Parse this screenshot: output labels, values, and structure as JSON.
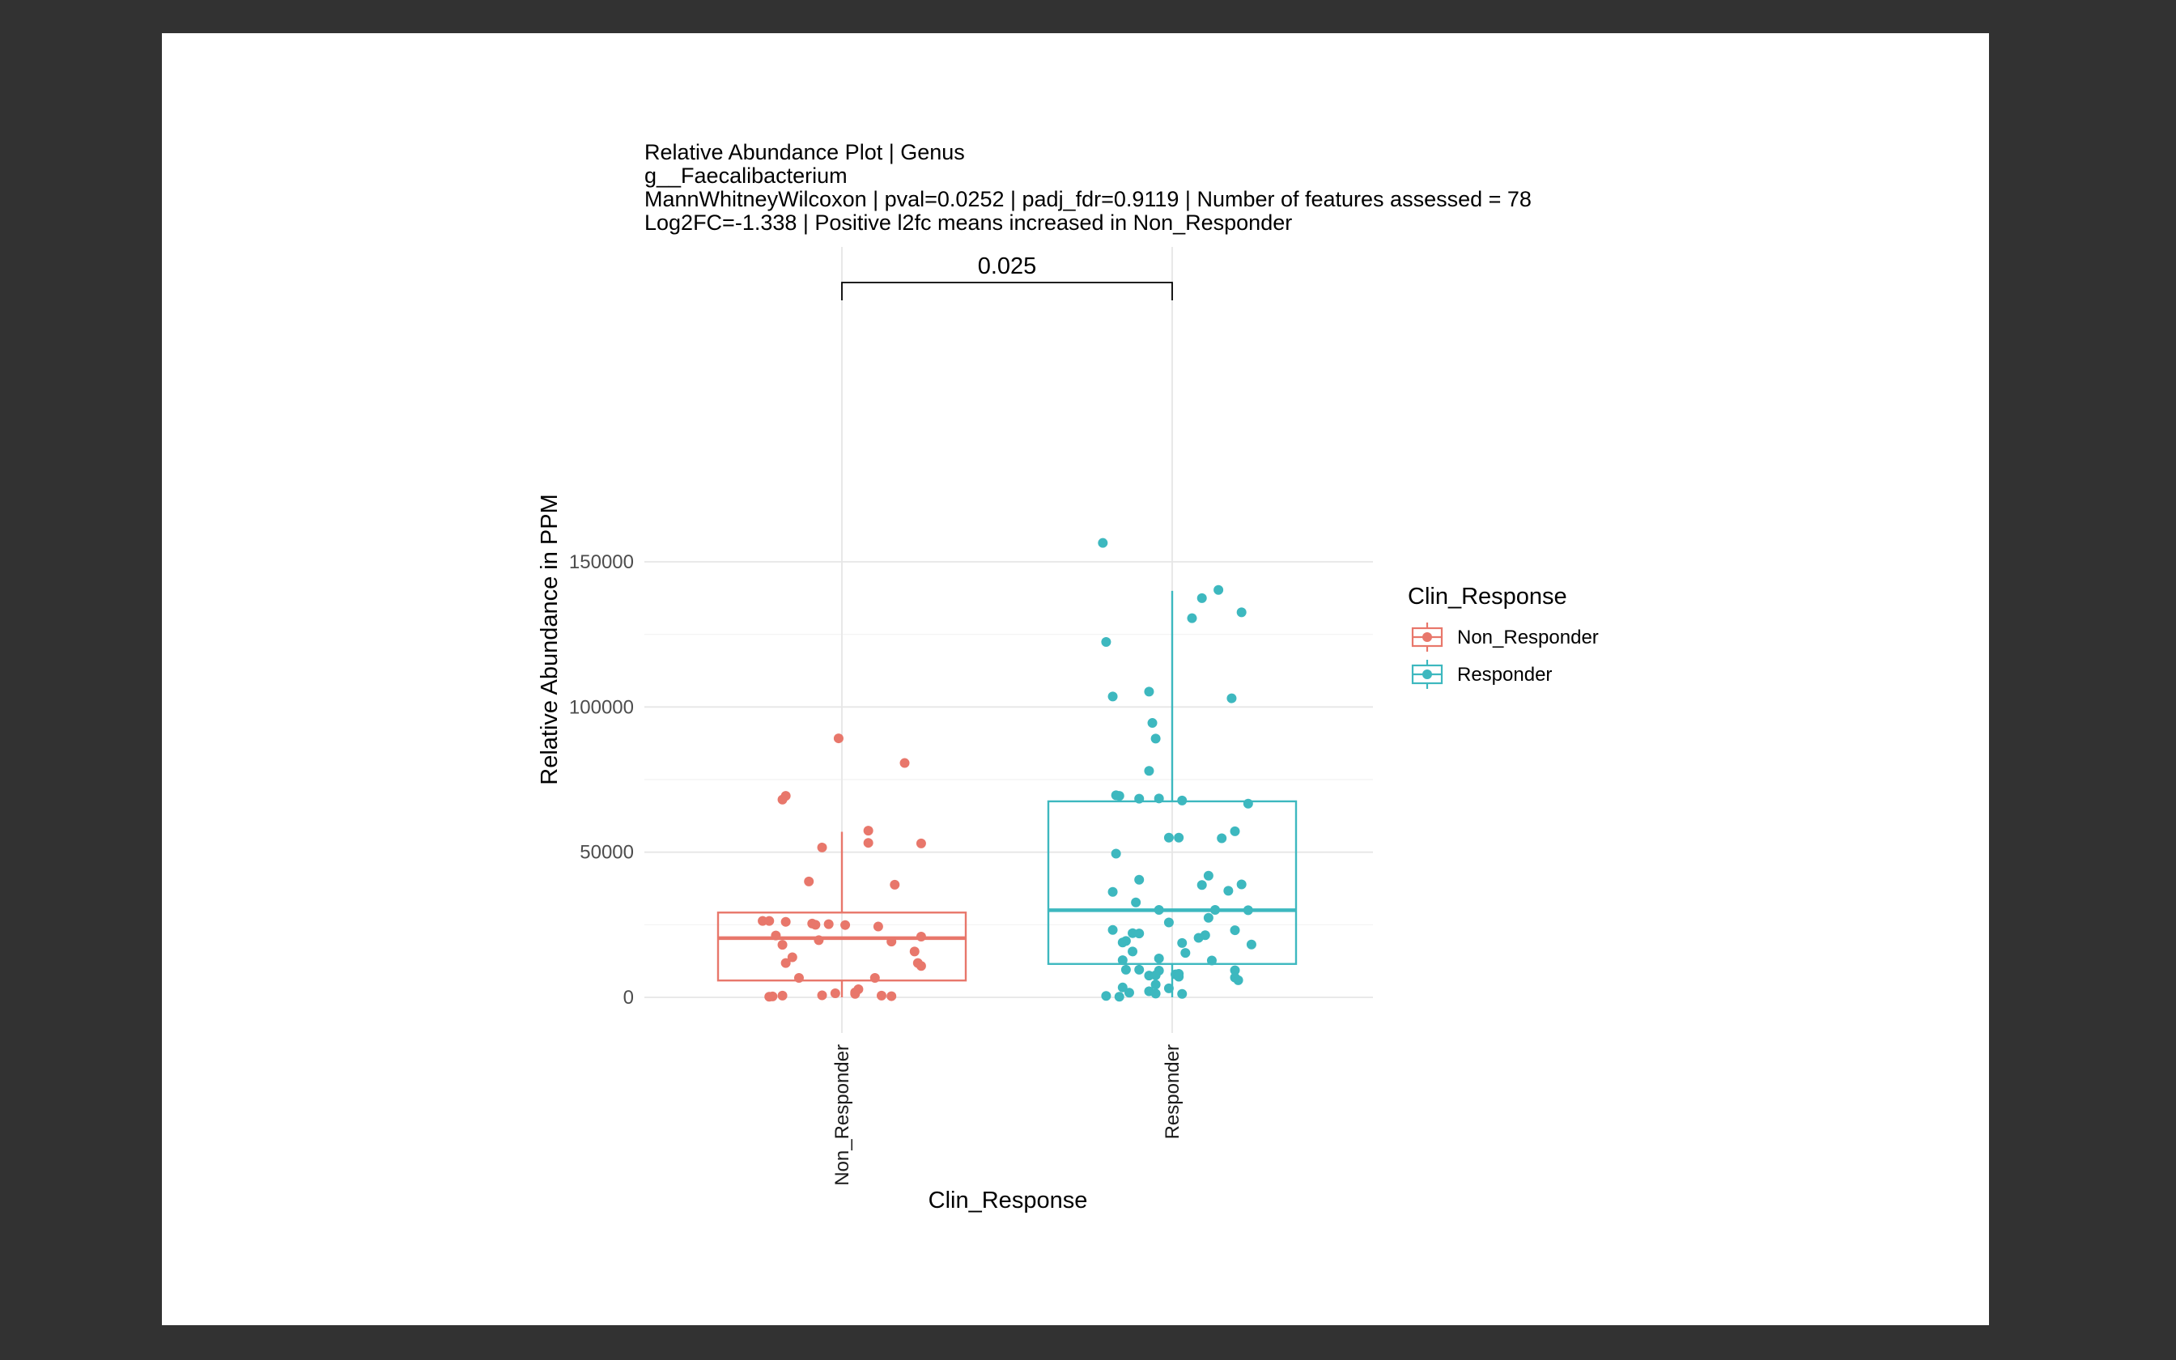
{
  "chart_data": {
    "type": "box",
    "title_lines": [
      "Relative Abundance Plot | Genus",
      "g__Faecalibacterium",
      "MannWhitneyWilcoxon | pval=0.0252 | padj_fdr=0.9119 | Number of features assessed = 78",
      "Log2FC=-1.338 | Positive l2fc means increased in Non_Responder"
    ],
    "xlabel": "Clin_Response",
    "ylabel": "Relative Abundance in PPM",
    "ylim": [
      -8000,
      170000
    ],
    "yticks": [
      0,
      50000,
      100000,
      150000
    ],
    "ytick_labels": [
      "0",
      "50000",
      "100000",
      "150000"
    ],
    "categories": [
      "Non_Responder",
      "Responder"
    ],
    "comparison": {
      "label": "0.025",
      "from": "Non_Responder",
      "to": "Responder"
    },
    "legend": {
      "title": "Clin_Response",
      "position": "right",
      "entries": [
        "Non_Responder",
        "Responder"
      ]
    },
    "grid": true,
    "series": [
      {
        "name": "Non_Responder",
        "color": "#E8776B",
        "box": {
          "q1": 5800,
          "median": 20400,
          "q3": 29200,
          "whisker_low": 0,
          "whisker_high": 57000
        },
        "points": [
          [
            -0.01,
            89200
          ],
          [
            0.19,
            80700
          ],
          [
            -0.17,
            69400
          ],
          [
            -0.18,
            68100
          ],
          [
            0.08,
            57400
          ],
          [
            0.08,
            53200
          ],
          [
            0.24,
            53000
          ],
          [
            -0.06,
            51600
          ],
          [
            -0.1,
            39900
          ],
          [
            0.16,
            38800
          ],
          [
            -0.24,
            26300
          ],
          [
            -0.22,
            26300
          ],
          [
            -0.17,
            26000
          ],
          [
            -0.09,
            25400
          ],
          [
            -0.08,
            25000
          ],
          [
            -0.04,
            25200
          ],
          [
            0.01,
            24900
          ],
          [
            0.11,
            24400
          ],
          [
            -0.2,
            21300
          ],
          [
            0.24,
            20900
          ],
          [
            -0.07,
            19700
          ],
          [
            0.15,
            19200
          ],
          [
            -0.18,
            18100
          ],
          [
            0.22,
            15800
          ],
          [
            -0.15,
            13800
          ],
          [
            0.23,
            11800
          ],
          [
            -0.17,
            11800
          ],
          [
            0.24,
            10800
          ],
          [
            0.1,
            6700
          ],
          [
            -0.13,
            6700
          ],
          [
            0.05,
            2800
          ],
          [
            0.04,
            1700
          ],
          [
            -0.02,
            1400
          ],
          [
            0.04,
            1200
          ],
          [
            -0.06,
            700
          ],
          [
            0.12,
            600
          ],
          [
            0.15,
            400
          ],
          [
            -0.18,
            600
          ],
          [
            -0.21,
            300
          ],
          [
            -0.22,
            200
          ]
        ]
      },
      {
        "name": "Responder",
        "color": "#3DB8BF",
        "box": {
          "q1": 11500,
          "median": 30000,
          "q3": 67500,
          "whisker_low": 0,
          "whisker_high": 140000
        },
        "points": [
          [
            -0.21,
            156500
          ],
          [
            0.14,
            140300
          ],
          [
            0.09,
            137500
          ],
          [
            0.21,
            132600
          ],
          [
            0.06,
            130600
          ],
          [
            -0.2,
            122400
          ],
          [
            -0.07,
            105300
          ],
          [
            -0.18,
            103600
          ],
          [
            0.18,
            103000
          ],
          [
            -0.06,
            94500
          ],
          [
            -0.05,
            89100
          ],
          [
            -0.07,
            78000
          ],
          [
            -0.17,
            69600
          ],
          [
            -0.16,
            69400
          ],
          [
            -0.04,
            68500
          ],
          [
            -0.1,
            68400
          ],
          [
            0.03,
            67800
          ],
          [
            0.23,
            66700
          ],
          [
            -0.01,
            55000
          ],
          [
            0.02,
            55000
          ],
          [
            0.15,
            54800
          ],
          [
            0.19,
            57200
          ],
          [
            -0.17,
            49500
          ],
          [
            -0.1,
            40500
          ],
          [
            0.11,
            41900
          ],
          [
            0.09,
            38700
          ],
          [
            0.21,
            38900
          ],
          [
            0.17,
            36700
          ],
          [
            -0.18,
            36300
          ],
          [
            -0.11,
            32700
          ],
          [
            0.13,
            30100
          ],
          [
            0.23,
            30000
          ],
          [
            -0.04,
            30100
          ],
          [
            0.11,
            27400
          ],
          [
            -0.01,
            25800
          ],
          [
            -0.18,
            23200
          ],
          [
            0.19,
            23100
          ],
          [
            -0.12,
            22100
          ],
          [
            -0.1,
            22000
          ],
          [
            0.1,
            21400
          ],
          [
            0.08,
            20500
          ],
          [
            -0.14,
            19400
          ],
          [
            -0.15,
            18900
          ],
          [
            0.03,
            18700
          ],
          [
            0.24,
            18200
          ],
          [
            -0.12,
            15800
          ],
          [
            0.04,
            15300
          ],
          [
            -0.04,
            13400
          ],
          [
            -0.15,
            12800
          ],
          [
            0.12,
            12700
          ],
          [
            0.19,
            9300
          ],
          [
            -0.1,
            9500
          ],
          [
            -0.14,
            9500
          ],
          [
            -0.04,
            9200
          ],
          [
            0.02,
            8100
          ],
          [
            0.01,
            7900
          ],
          [
            -0.05,
            7600
          ],
          [
            -0.07,
            7500
          ],
          [
            0.02,
            7100
          ],
          [
            0.19,
            6800
          ],
          [
            0.2,
            5900
          ],
          [
            -0.05,
            4400
          ],
          [
            -0.15,
            3400
          ],
          [
            -0.01,
            3100
          ],
          [
            -0.07,
            2100
          ],
          [
            -0.13,
            1600
          ],
          [
            -0.05,
            1300
          ],
          [
            0.03,
            1200
          ],
          [
            -0.2,
            500
          ],
          [
            -0.16,
            200
          ]
        ]
      }
    ]
  }
}
